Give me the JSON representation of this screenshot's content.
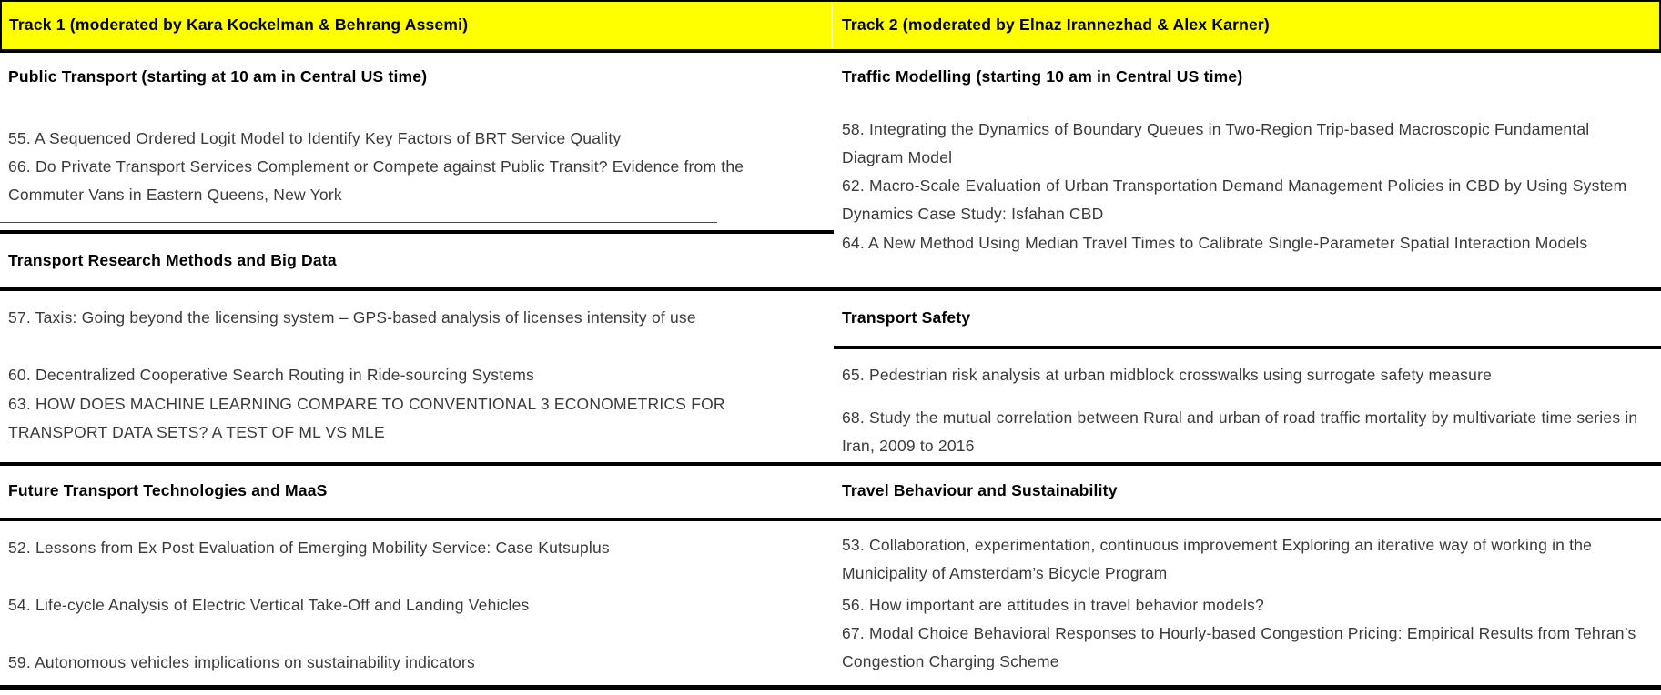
{
  "colors": {
    "highlight": "#ffff00",
    "border": "#000000",
    "body_text": "#3a3a3a",
    "heading_text": "#000000"
  },
  "header": {
    "track1": "Track 1 (moderated by Kara Kockelman & Behrang Assemi)",
    "track2": "Track 2 (moderated by Elnaz Irannezhad & Alex Karner)"
  },
  "track1": {
    "sections": [
      {
        "title": "Public Transport (starting at 10 am in Central US time)",
        "papers": [
          "55. A Sequenced Ordered Logit Model to Identify Key Factors of BRT Service Quality",
          "66. Do Private Transport Services Complement or Compete against Public Transit? Evidence from the Commuter Vans in Eastern Queens, New York"
        ]
      },
      {
        "title": "Transport Research Methods and Big Data",
        "papers": [
          "57. Taxis: Going beyond the licensing system – GPS-based analysis of licenses intensity of use",
          "60. Decentralized Cooperative Search Routing in Ride-sourcing Systems",
          "63. HOW DOES MACHINE LEARNING COMPARE TO CONVENTIONAL 3 ECONOMETRICS FOR TRANSPORT DATA SETS? A TEST OF ML VS MLE"
        ]
      },
      {
        "title": "Future Transport Technologies and MaaS",
        "papers": [
          "52. Lessons from Ex Post Evaluation of Emerging Mobility Service: Case Kutsuplus",
          "54. Life-cycle Analysis of Electric Vertical Take-Off and Landing Vehicles",
          "59. Autonomous vehicles implications on sustainability indicators"
        ]
      }
    ]
  },
  "track2": {
    "sections": [
      {
        "title": "Traffic Modelling (starting 10 am in Central US time)",
        "papers": [
          "58. Integrating the Dynamics of Boundary Queues in Two-Region Trip-based Macroscopic Fundamental Diagram Model",
          "62. Macro-Scale Evaluation of Urban Transportation Demand Management Policies in CBD by Using System Dynamics Case Study: Isfahan CBD",
          "64. A New Method Using Median Travel Times to Calibrate Single-Parameter Spatial Interaction Models"
        ]
      },
      {
        "title": "Transport Safety",
        "papers": [
          "65. Pedestrian risk analysis at urban midblock crosswalks using surrogate safety measure",
          "68. Study the mutual correlation between Rural and urban of road traffic mortality by multivariate time series in Iran, 2009 to 2016"
        ]
      },
      {
        "title": "Travel Behaviour and Sustainability",
        "papers": [
          "53. Collaboration, experimentation, continuous improvement Exploring an iterative way of working in the Municipality of Amsterdam’s Bicycle Program",
          "56. How important are attitudes in travel behavior models?",
          "67. Modal Choice Behavioral Responses to Hourly-based Congestion Pricing: Empirical Results from Tehran’s Congestion Charging Scheme"
        ]
      }
    ]
  }
}
